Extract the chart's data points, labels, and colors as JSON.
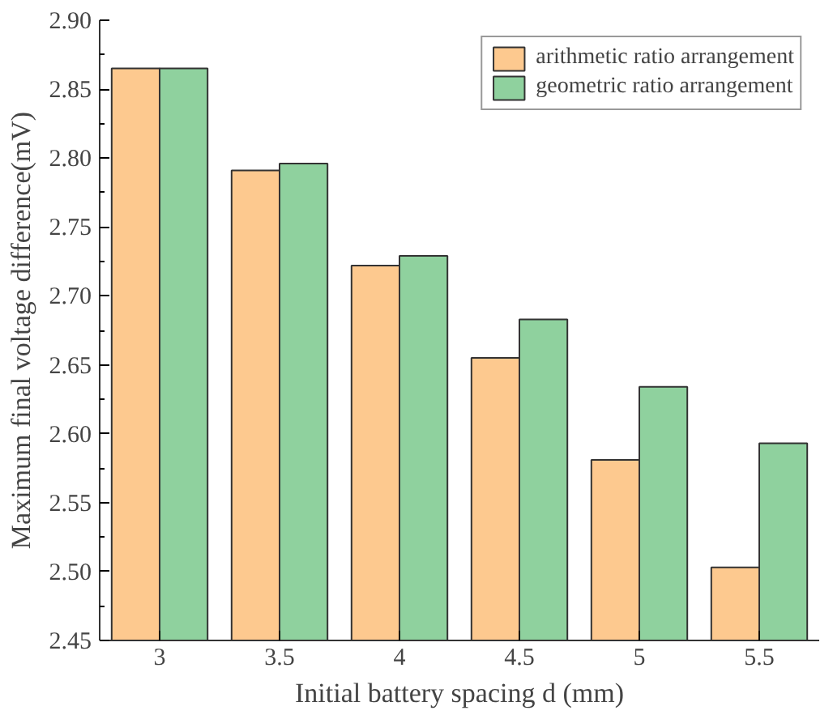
{
  "chart_data": {
    "type": "bar",
    "xlabel": "Initial battery spacing d (mm)",
    "ylabel": "Maximum final voltage difference(mV)",
    "categories": [
      "3",
      "3.5",
      "4",
      "4.5",
      "5",
      "5.5"
    ],
    "series": [
      {
        "name": "arithmetic ratio arrangement",
        "color": "#fdc98f",
        "values": [
          2.865,
          2.791,
          2.722,
          2.655,
          2.581,
          2.503
        ]
      },
      {
        "name": "geometric ratio arrangement",
        "color": "#8fd19e",
        "values": [
          2.865,
          2.796,
          2.729,
          2.683,
          2.634,
          2.593
        ]
      }
    ],
    "ylim": [
      2.45,
      2.9
    ],
    "yticks": [
      2.45,
      {
        "value": 2.5,
        "label": "2.50"
      },
      2.55,
      {
        "value": 2.6,
        "label": "2.60"
      },
      2.65,
      {
        "value": 2.7,
        "label": "2.70"
      },
      2.75,
      {
        "value": 2.8,
        "label": "2.80"
      },
      2.85,
      {
        "value": 2.9,
        "label": "2.90"
      }
    ],
    "grid": false,
    "legend": "top right"
  }
}
